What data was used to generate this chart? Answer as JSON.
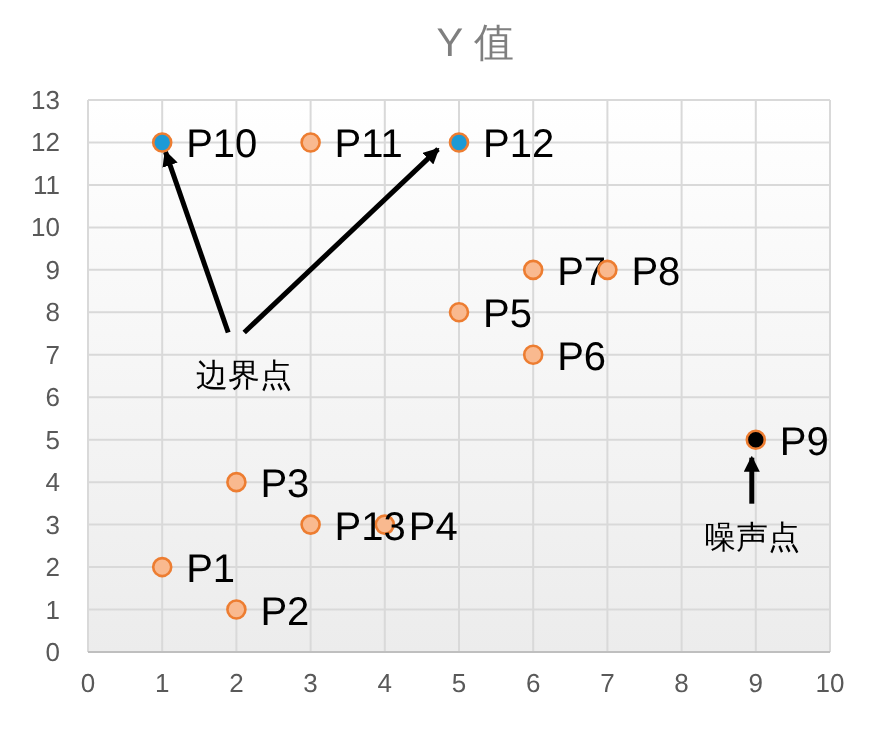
{
  "chart_data": {
    "type": "scatter",
    "title": "Y 值",
    "x": [
      1,
      2,
      2,
      4,
      5,
      6,
      6,
      7,
      9,
      1,
      3,
      5,
      3
    ],
    "values": [
      2,
      1,
      4,
      3,
      8,
      7,
      9,
      9,
      5,
      12,
      12,
      12,
      3
    ],
    "colors": [
      "#f9b98f",
      "#f9b98f",
      "#f9b98f",
      "#f9b98f",
      "#f9b98f",
      "#f9b98f",
      "#f9b98f",
      "#f9b98f",
      "#000000",
      "#1c9ad6",
      "#f9b98f",
      "#1c9ad6",
      "#f9b98f"
    ],
    "value_labels": [
      "P1",
      "P2",
      "P3",
      "P4",
      "P5",
      "P6",
      "P7",
      "P8",
      "P9",
      "P10",
      "P11",
      "P12",
      "P13"
    ],
    "annotations": [
      {
        "text": "边界点",
        "x": 1,
        "y": 12
      },
      {
        "text": "噪声点",
        "x": 9,
        "y": 5
      }
    ],
    "xlim": [
      0,
      10
    ],
    "xticks": [
      0,
      1,
      2,
      3,
      4,
      5,
      6,
      7,
      8,
      9,
      10
    ],
    "ylim": [
      0,
      13
    ],
    "yticks": [
      0,
      1,
      2,
      3,
      4,
      5,
      6,
      7,
      8,
      9,
      10,
      11,
      12,
      13
    ],
    "grid": true,
    "marker": "circle"
  }
}
